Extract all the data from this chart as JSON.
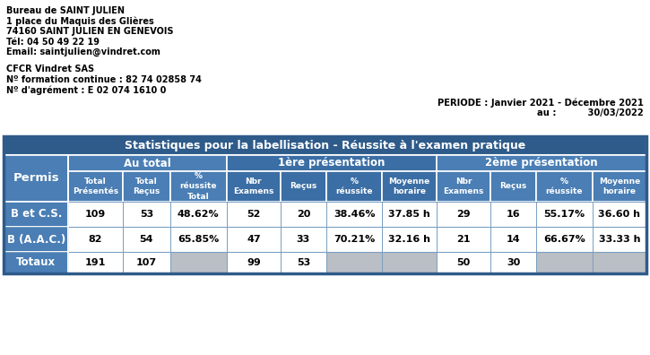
{
  "header_lines": [
    "Bureau de SAINT JULIEN",
    "1 place du Maquis des Glières",
    "74160 SAINT JULIEN EN GENEVOIS",
    "Tél: 04 50 49 22 19",
    "Email: saintjulien@vindret.com"
  ],
  "company_lines": [
    "CFCR Vindret SAS",
    "Nº formation continue : 82 74 02858 74",
    "Nº d'agrément : E 02 074 1610 0"
  ],
  "period_line": "PERIODE : Janvier 2021 - Décembre 2021",
  "au_line": "au :          30/03/2022",
  "table_title": "Statistiques pour la labellisation - Réussite à l'examen pratique",
  "col_groups": [
    "Au total",
    "1ère présentation",
    "2ème présentation"
  ],
  "col_group_spans": [
    3,
    4,
    4
  ],
  "col_headers": [
    "Total\nPrésentés",
    "Total\nReçus",
    "%\nréussite\nTotal",
    "Nbr\nExamens",
    "Reçus",
    "%\nréussite",
    "Moyenne\nhoraire",
    "Nbr\nExamens",
    "Reçus",
    "%\nréussite",
    "Moyenne\nhoraire"
  ],
  "row_label_header": "Permis",
  "rows": [
    {
      "label": "B et C.S.",
      "values": [
        "109",
        "53",
        "48.62%",
        "52",
        "20",
        "38.46%",
        "37.85 h",
        "29",
        "16",
        "55.17%",
        "36.60 h"
      ]
    },
    {
      "label": "B (A.A.C.)",
      "values": [
        "82",
        "54",
        "65.85%",
        "47",
        "33",
        "70.21%",
        "32.16 h",
        "21",
        "14",
        "66.67%",
        "33.33 h"
      ]
    },
    {
      "label": "Totaux",
      "values": [
        "191",
        "107",
        "",
        "99",
        "53",
        "",
        "",
        "50",
        "30",
        "",
        ""
      ]
    }
  ],
  "gray_cols_totaux": [
    2,
    5,
    6,
    9,
    10
  ],
  "title_bg": "#2E5B8A",
  "group_bg_odd": "#4A7EB5",
  "group_bg_even": "#3B6EA5",
  "subhdr_bg_odd": "#4A7EB5",
  "subhdr_bg_even": "#3B6EA5",
  "permis_bg": "#4A7EB5",
  "totaux_label_bg": "#4A7EB5",
  "cell_gray": "#BABEC5",
  "cell_white": "#FFFFFF",
  "border_color": "#2E5B8A",
  "inner_border": "#7A9FC0",
  "text_white": "#FFFFFF",
  "text_black": "#000000"
}
